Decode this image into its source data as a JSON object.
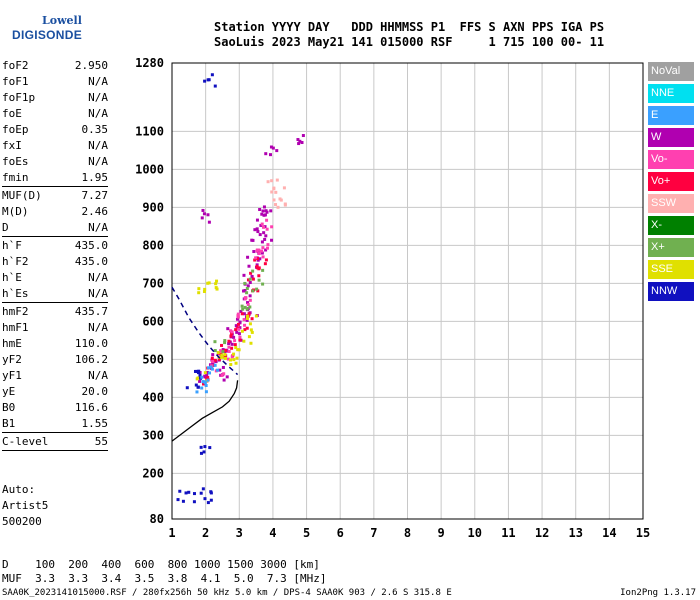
{
  "logo": {
    "line1": "Lowell",
    "line2": "DIGISONDE"
  },
  "header": {
    "line1": "Station YYYY DAY   DDD HHMMSS P1  FFS S AXN PPS IGA PS",
    "line2": "SaoLuis 2023 May21 141 015000 RSF     1 715 100 00- 11"
  },
  "params": [
    {
      "k": "foF2",
      "v": "2.950"
    },
    {
      "k": "foF1",
      "v": "N/A"
    },
    {
      "k": "foF1p",
      "v": "N/A"
    },
    {
      "k": "foE",
      "v": "N/A"
    },
    {
      "k": "foEp",
      "v": "0.35"
    },
    {
      "k": "fxI",
      "v": "N/A"
    },
    {
      "k": "foEs",
      "v": "N/A"
    },
    {
      "k": "fmin",
      "v": "1.95"
    },
    {
      "sep": true
    },
    {
      "k": "MUF(D)",
      "v": "7.27"
    },
    {
      "k": "M(D)",
      "v": "2.46"
    },
    {
      "k": "D",
      "v": "N/A"
    },
    {
      "sep": true
    },
    {
      "k": "h`F",
      "v": "435.0"
    },
    {
      "k": "h`F2",
      "v": "435.0"
    },
    {
      "k": "h`E",
      "v": "N/A"
    },
    {
      "k": "h`Es",
      "v": "N/A"
    },
    {
      "sep": true
    },
    {
      "k": "hmF2",
      "v": "435.7"
    },
    {
      "k": "hmF1",
      "v": "N/A"
    },
    {
      "k": "hmE",
      "v": "110.0"
    },
    {
      "k": "yF2",
      "v": "106.2"
    },
    {
      "k": "yF1",
      "v": "N/A"
    },
    {
      "k": "yE",
      "v": "20.0"
    },
    {
      "k": "B0",
      "v": "116.6"
    },
    {
      "k": "B1",
      "v": "1.55"
    },
    {
      "sep": true
    },
    {
      "k": "C-level",
      "v": "55"
    },
    {
      "sep": true
    }
  ],
  "auto": {
    "l1": "Auto:",
    "l2": "Artist5",
    "l3": "500200"
  },
  "legend": [
    {
      "label": "NoVal",
      "color": "#a0a0a0"
    },
    {
      "label": "NNE",
      "color": "#00e0f0"
    },
    {
      "label": "E",
      "color": "#3aa0ff"
    },
    {
      "label": "W",
      "color": "#b000b0"
    },
    {
      "label": "Vo-",
      "color": "#ff40b0"
    },
    {
      "label": "Vo+",
      "color": "#ff0040"
    },
    {
      "label": "SSW",
      "color": "#ffb0b0"
    },
    {
      "label": "X-",
      "color": "#008000"
    },
    {
      "label": "X+",
      "color": "#70b050"
    },
    {
      "label": "SSE",
      "color": "#e0e000"
    },
    {
      "label": "NNW",
      "color": "#1010c0"
    }
  ],
  "muf_table": {
    "line1": "D    100  200  400  600  800 1000 1500 3000 [km]",
    "line2": "MUF  3.3  3.3  3.4  3.5  3.8  4.1  5.0  7.3 [MHz]"
  },
  "footer": {
    "left": "SAA0K_2023141015000.RSF / 280fx256h 50 kHz 5.0 km / DPS-4 SAA0K 903 / 2.6 S 315.8 E",
    "right": "Ion2Png 1.3.17"
  },
  "chart_data": {
    "type": "scatter",
    "title": "",
    "xlabel": "",
    "ylabel": "",
    "xlim": [
      1,
      15
    ],
    "ylim": [
      80,
      1280
    ],
    "xticks": [
      1,
      2,
      3,
      4,
      5,
      6,
      7,
      8,
      9,
      10,
      11,
      12,
      13,
      14,
      15
    ],
    "yticks": [
      80,
      200,
      300,
      400,
      500,
      600,
      700,
      800,
      900,
      1000,
      1100,
      1280
    ],
    "grid": true,
    "profile_curve": {
      "x": [
        1.0,
        1.3,
        1.6,
        1.9,
        2.2,
        2.5,
        2.7,
        2.85,
        2.92,
        2.95
      ],
      "y": [
        285,
        305,
        325,
        345,
        360,
        375,
        390,
        410,
        425,
        445
      ]
    },
    "dashed_trace": {
      "x": [
        1.0,
        1.2,
        1.5,
        1.8,
        2.1,
        2.4,
        2.7,
        2.95
      ],
      "y": [
        690,
        660,
        610,
        570,
        535,
        505,
        480,
        460
      ]
    },
    "echo_clusters": [
      {
        "name": "W",
        "points": [
          [
            1.95,
            460
          ],
          [
            2.1,
            480
          ],
          [
            2.3,
            500
          ],
          [
            2.5,
            520
          ],
          [
            2.7,
            540
          ],
          [
            2.9,
            560
          ],
          [
            3.0,
            600
          ],
          [
            3.1,
            640
          ],
          [
            3.2,
            680
          ],
          [
            3.3,
            720
          ],
          [
            3.4,
            760
          ],
          [
            3.5,
            800
          ],
          [
            3.6,
            840
          ],
          [
            3.7,
            880
          ],
          [
            3.8,
            900
          ],
          [
            2.05,
            880
          ],
          [
            3.9,
            1060
          ],
          [
            4.7,
            1090
          ],
          [
            2.4,
            460
          ],
          [
            2.8,
            580
          ],
          [
            3.3,
            620
          ],
          [
            3.6,
            780
          ],
          [
            3.75,
            820
          ]
        ]
      },
      {
        "name": "Vo+",
        "points": [
          [
            2.2,
            490
          ],
          [
            2.4,
            510
          ],
          [
            2.6,
            530
          ],
          [
            2.8,
            560
          ],
          [
            3.0,
            590
          ],
          [
            3.2,
            620
          ],
          [
            3.4,
            700
          ],
          [
            3.6,
            760
          ],
          [
            2.0,
            440
          ],
          [
            3.5,
            730
          ]
        ]
      },
      {
        "name": "Vo-",
        "points": [
          [
            2.3,
            480
          ],
          [
            2.6,
            520
          ],
          [
            2.9,
            570
          ],
          [
            3.1,
            610
          ],
          [
            3.3,
            660
          ],
          [
            3.5,
            780
          ],
          [
            3.8,
            860
          ],
          [
            3.7,
            790
          ]
        ]
      },
      {
        "name": "SSE",
        "points": [
          [
            1.95,
            690
          ],
          [
            2.1,
            700
          ],
          [
            2.5,
            520
          ],
          [
            2.9,
            520
          ],
          [
            3.2,
            560
          ],
          [
            3.4,
            600
          ],
          [
            1.9,
            455
          ],
          [
            2.7,
            500
          ]
        ]
      },
      {
        "name": "NNW",
        "points": [
          [
            1.1,
            145
          ],
          [
            1.3,
            145
          ],
          [
            1.5,
            145
          ],
          [
            1.7,
            145
          ],
          [
            1.9,
            145
          ],
          [
            2.0,
            145
          ],
          [
            2.1,
            145
          ],
          [
            1.6,
            440
          ],
          [
            1.8,
            460
          ],
          [
            2.0,
            260
          ],
          [
            2.1,
            1240
          ]
        ]
      },
      {
        "name": "X+",
        "points": [
          [
            3.3,
            690
          ],
          [
            3.1,
            650
          ],
          [
            3.45,
            720
          ],
          [
            2.4,
            540
          ]
        ]
      },
      {
        "name": "E",
        "points": [
          [
            1.85,
            430
          ],
          [
            2.0,
            450
          ],
          [
            2.2,
            470
          ]
        ]
      },
      {
        "name": "SSW",
        "points": [
          [
            4.1,
            940
          ],
          [
            3.95,
            960
          ],
          [
            4.2,
            920
          ]
        ]
      }
    ]
  }
}
